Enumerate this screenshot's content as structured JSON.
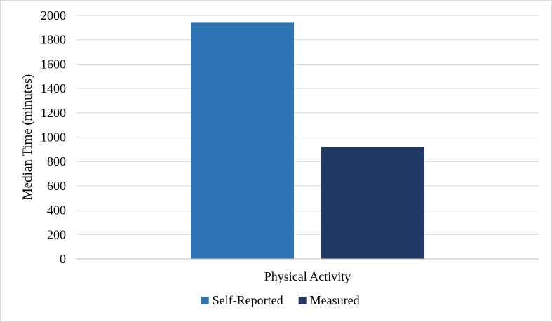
{
  "chart_data": {
    "type": "bar",
    "title": "",
    "xlabel": "",
    "ylabel": "Median Time (minutes)",
    "categories": [
      "Physical Activity"
    ],
    "series": [
      {
        "name": "Self-Reported",
        "values": [
          1940
        ],
        "color": "#2e75b6"
      },
      {
        "name": "Measured",
        "values": [
          920
        ],
        "color": "#203864"
      }
    ],
    "ylim": [
      0,
      2000
    ],
    "yticks": [
      0,
      200,
      400,
      600,
      800,
      1000,
      1200,
      1400,
      1600,
      1800,
      2000
    ],
    "grid": true,
    "legend_position": "bottom",
    "gridline_color": "#d9d9d9",
    "axis_color": "#bfbfbf"
  }
}
